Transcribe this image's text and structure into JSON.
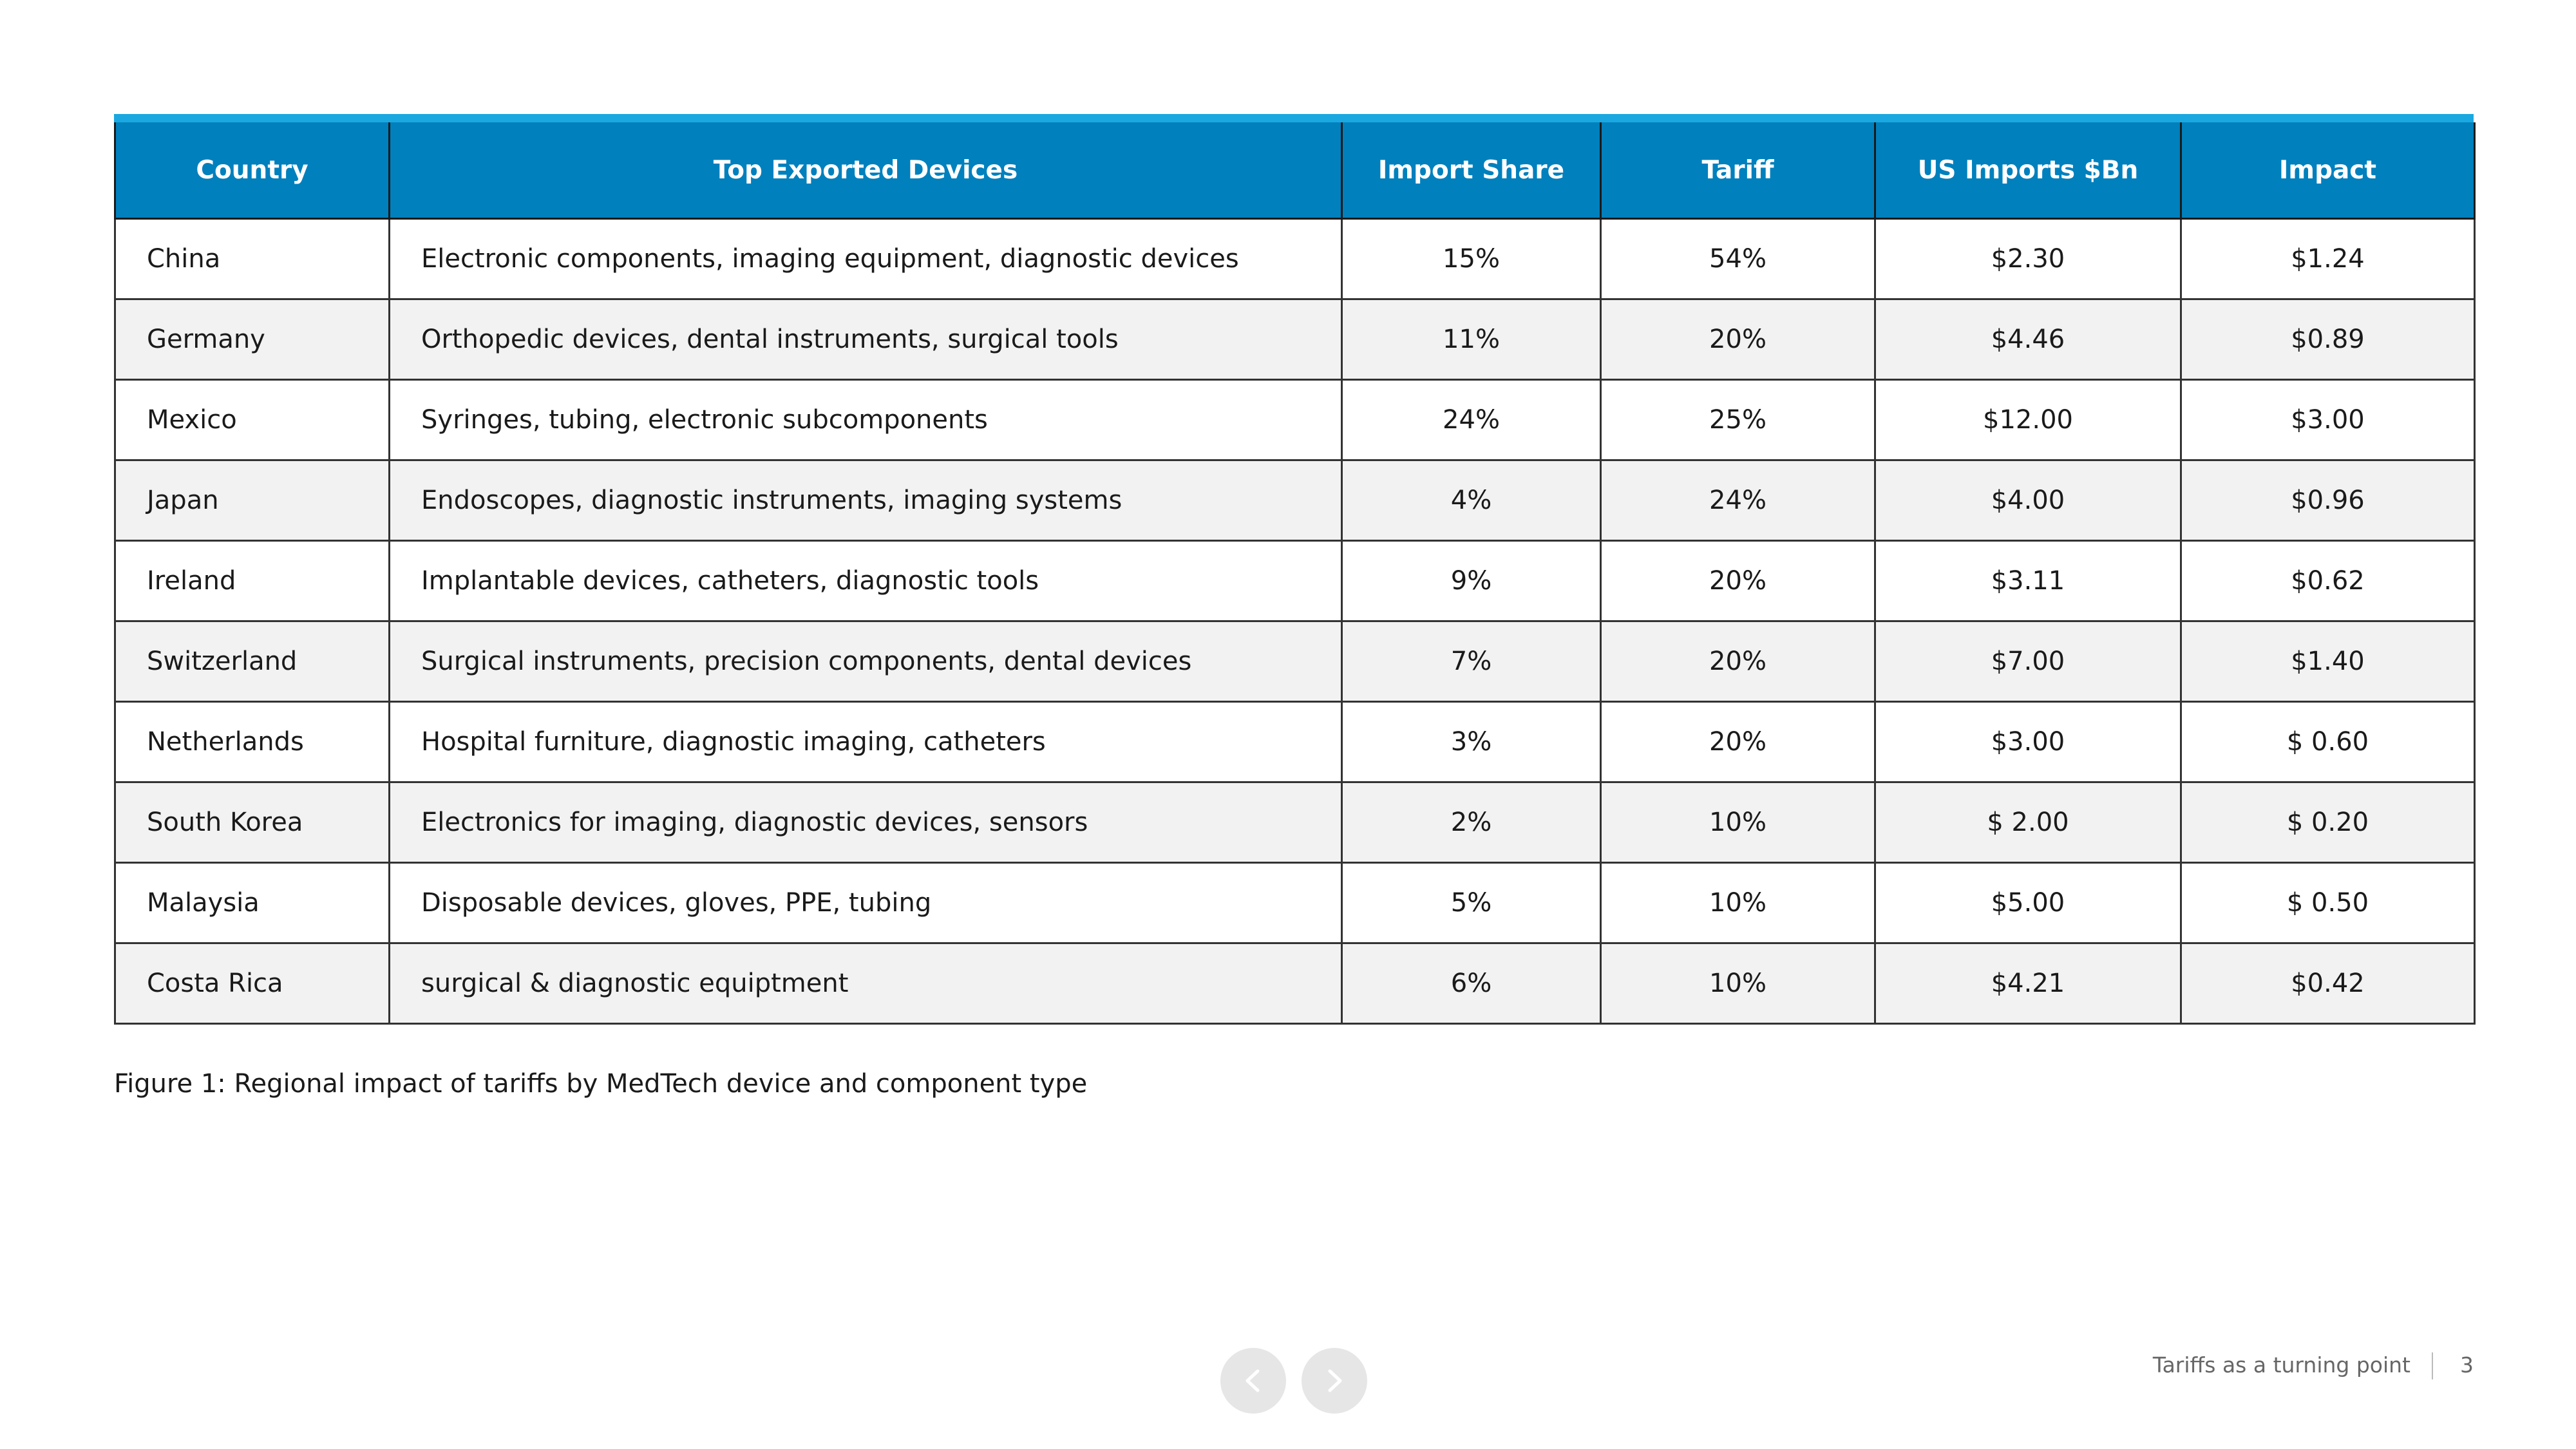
{
  "table": {
    "header": [
      "Country",
      "Top Exported Devices",
      "Import Share",
      "Tariff",
      "US Imports $Bn",
      "Impact"
    ],
    "rows": [
      [
        "China",
        "Electronic components, imaging equipment, diagnostic devices",
        "15%",
        "54%",
        "$2.30",
        "$1.24"
      ],
      [
        "Germany",
        "Orthopedic devices, dental instruments, surgical tools",
        "11%",
        "20%",
        "$4.46",
        "$0.89"
      ],
      [
        "Mexico",
        "Syringes, tubing, electronic subcomponents",
        "24%",
        "25%",
        "$12.00",
        "$3.00"
      ],
      [
        "Japan",
        "Endoscopes, diagnostic instruments, imaging systems",
        "4%",
        "24%",
        "$4.00",
        "$0.96"
      ],
      [
        "Ireland",
        "Implantable devices, catheters, diagnostic tools",
        "9%",
        "20%",
        "$3.11",
        "$0.62"
      ],
      [
        "Switzerland",
        "Surgical instruments, precision components, dental devices",
        "7%",
        "20%",
        "$7.00",
        "$1.40"
      ],
      [
        "Netherlands",
        "Hospital furniture, diagnostic imaging, catheters",
        "3%",
        "20%",
        "$3.00",
        "$ 0.60"
      ],
      [
        "South Korea",
        "Electronics for imaging, diagnostic devices, sensors",
        "2%",
        "10%",
        "$ 2.00",
        "$ 0.20"
      ],
      [
        "Malaysia",
        "Disposable devices, gloves, PPE, tubing",
        "5%",
        "10%",
        "$5.00",
        "$ 0.50"
      ],
      [
        "Costa Rica",
        "surgical & diagnostic equiptment",
        "6%",
        "10%",
        "$4.21",
        "$0.42"
      ]
    ]
  },
  "caption": "Figure 1:  Regional impact of tariffs by MedTech device and component type",
  "footer": {
    "title": "Tariffs as a turning point",
    "page": "3"
  }
}
